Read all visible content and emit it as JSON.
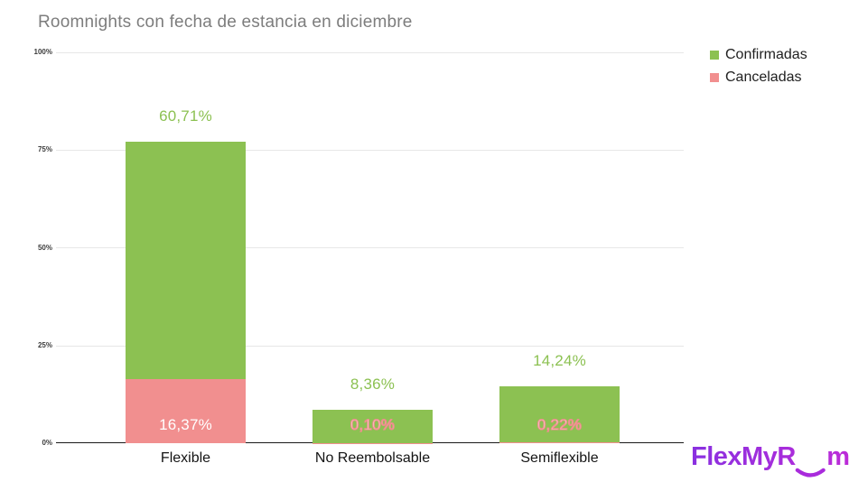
{
  "chart_data": {
    "type": "bar",
    "stacked": true,
    "title": "Roomnights con fecha de estancia en diciembre",
    "categories": [
      "Flexible",
      "No Reembolsable",
      "Semiflexible"
    ],
    "series": [
      {
        "name": "Confirmadas",
        "color": "#8cc152",
        "values": [
          60.71,
          8.36,
          14.24
        ],
        "value_labels": [
          "60,71%",
          "8,36%",
          "14,24%"
        ]
      },
      {
        "name": "Canceladas",
        "color": "#f18f8f",
        "values": [
          16.37,
          0.1,
          0.22
        ],
        "value_labels": [
          "16,37%",
          "0,10%",
          "0,22%"
        ]
      }
    ],
    "totals_percent": [
      77.08,
      8.46,
      14.46
    ],
    "y_ticks": [
      "100%",
      "75%",
      "50%",
      "25%",
      "0%"
    ],
    "ylim": [
      0,
      100
    ],
    "grid": true,
    "legend_position": "top-right"
  },
  "logo": {
    "text": "FlexMyRoom",
    "prefix": "FlexMyR",
    "eyes": "oo",
    "suffix": "m",
    "color_start": "#8930e0",
    "color_end": "#bc2bd8"
  }
}
